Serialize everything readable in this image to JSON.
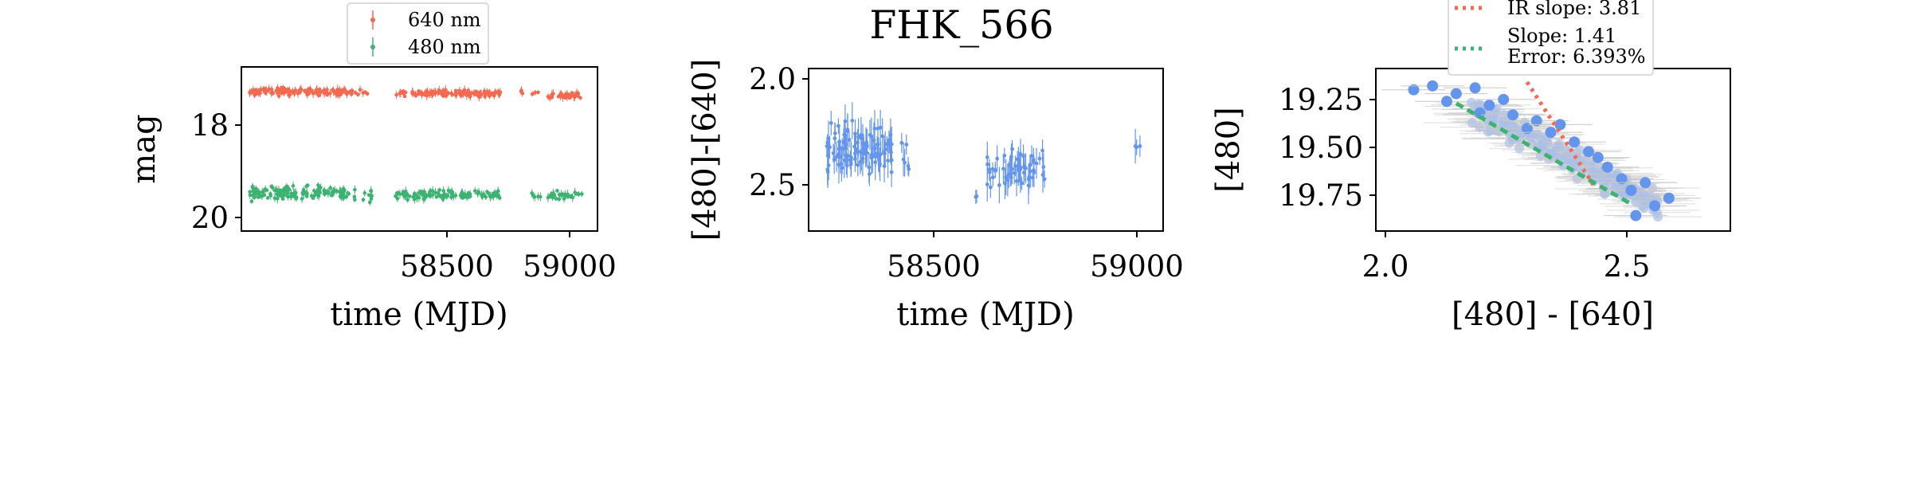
{
  "figure": {
    "title": "FHK_566"
  },
  "colors": {
    "red": "#f4694f",
    "green": "#3cb371",
    "blue": "#6495ed",
    "errgray": "#c8c8c8"
  },
  "chart_data": [
    {
      "type": "scatter",
      "title": "",
      "xlabel": "time (MJD)",
      "ylabel": "mag",
      "xlim": [
        58190,
        59070
      ],
      "ylim": [
        20.45,
        16.6
      ],
      "y_inverted": true,
      "xticks": [
        58500,
        59000
      ],
      "xtick_labels": [
        "58500",
        "59000"
      ],
      "yticks": [
        18,
        20
      ],
      "ytick_labels": [
        "18",
        "20"
      ],
      "legend": {
        "placement": "top-center",
        "entries": [
          "640 nm",
          "480 nm"
        ]
      },
      "series": [
        {
          "name": "640 nm",
          "color": "red",
          "segments": [
            {
              "x_range": [
                58210,
                58450
              ],
              "y_center": 17.18,
              "y_spread": 0.12,
              "count": 130
            },
            {
              "x_range": [
                58450,
                58510
              ],
              "y_center": 17.2,
              "y_spread": 0.1,
              "count": 15
            },
            {
              "x_range": [
                58570,
                58830
              ],
              "y_center": 17.22,
              "y_spread": 0.1,
              "count": 120
            },
            {
              "x_range": [
                58880,
                58930
              ],
              "y_center": 17.2,
              "y_spread": 0.08,
              "count": 6
            },
            {
              "x_range": [
                58945,
                59035
              ],
              "y_center": 17.28,
              "y_spread": 0.1,
              "count": 30
            }
          ]
        },
        {
          "name": "480 nm",
          "color": "green",
          "segments": [
            {
              "x_range": [
                58210,
                58450
              ],
              "y_center": 19.55,
              "y_spread": 0.22,
              "count": 140
            },
            {
              "x_range": [
                58450,
                58520
              ],
              "y_center": 19.65,
              "y_spread": 0.28,
              "count": 14
            },
            {
              "x_range": [
                58570,
                58830
              ],
              "y_center": 19.6,
              "y_spread": 0.15,
              "count": 110
            },
            {
              "x_range": [
                58880,
                58930
              ],
              "y_center": 19.6,
              "y_spread": 0.12,
              "count": 5
            },
            {
              "x_range": [
                58945,
                59035
              ],
              "y_center": 19.62,
              "y_spread": 0.15,
              "count": 30
            }
          ]
        }
      ]
    },
    {
      "type": "scatter",
      "title": "FHK_566",
      "xlabel": "time (MJD)",
      "ylabel": "[480]-[640]",
      "xlim": [
        58190,
        59070
      ],
      "ylim": [
        2.72,
        1.95
      ],
      "y_inverted": true,
      "xticks": [
        58500,
        59000
      ],
      "xtick_labels": [
        "58500",
        "59000"
      ],
      "yticks": [
        2.0,
        2.5
      ],
      "ytick_labels": [
        "2.0",
        "2.5"
      ],
      "series": [
        {
          "name": "",
          "color": "blue",
          "error_bars": true,
          "segments": [
            {
              "x_range": [
                58230,
                58400
              ],
              "y_center": 2.33,
              "y_spread": 0.16,
              "count": 110
            },
            {
              "x_range": [
                58420,
                58440
              ],
              "y_center": 2.35,
              "y_spread": 0.18,
              "count": 6
            },
            {
              "x_range": [
                58600,
                58610
              ],
              "y_center": 2.56,
              "y_spread": 0.02,
              "count": 2
            },
            {
              "x_range": [
                58630,
                58780
              ],
              "y_center": 2.42,
              "y_spread": 0.12,
              "count": 60
            },
            {
              "x_range": [
                58995,
                59020
              ],
              "y_center": 2.32,
              "y_spread": 0.04,
              "count": 3
            }
          ]
        }
      ]
    },
    {
      "type": "scatter",
      "title": "",
      "xlabel": "[480] - [640]",
      "ylabel": "[480]",
      "xlim": [
        1.98,
        2.73
      ],
      "ylim": [
        19.93,
        19.09
      ],
      "y_inverted": true,
      "xticks": [
        2.0,
        2.5
      ],
      "xtick_labels": [
        "2.0",
        "2.5"
      ],
      "yticks": [
        19.25,
        19.5,
        19.75
      ],
      "ytick_labels": [
        "19.25",
        "19.50",
        "19.75"
      ],
      "legend": {
        "placement": "top-left",
        "entries": [
          "IR slope: 3.81",
          "Slope: 1.41",
          "Error: 6.393%"
        ]
      },
      "series": [
        {
          "name": "",
          "color": "blue",
          "error_bars": true,
          "points": [
            [
              2.06,
              19.2
            ],
            [
              2.1,
              19.18
            ],
            [
              2.13,
              19.26
            ],
            [
              2.15,
              19.22
            ],
            [
              2.19,
              19.19
            ],
            [
              2.2,
              19.32
            ],
            [
              2.22,
              19.28
            ],
            [
              2.25,
              19.25
            ],
            [
              2.27,
              19.33
            ],
            [
              2.3,
              19.4
            ],
            [
              2.32,
              19.36
            ],
            [
              2.35,
              19.42
            ],
            [
              2.37,
              19.38
            ],
            [
              2.4,
              19.47
            ],
            [
              2.43,
              19.52
            ],
            [
              2.45,
              19.55
            ],
            [
              2.47,
              19.6
            ],
            [
              2.5,
              19.66
            ],
            [
              2.52,
              19.72
            ],
            [
              2.55,
              19.68
            ],
            [
              2.57,
              19.8
            ],
            [
              2.6,
              19.76
            ],
            [
              2.53,
              19.85
            ]
          ],
          "cloud": {
            "x_range": [
              2.18,
              2.58
            ],
            "y_center_at_xmin": 19.3,
            "y_center_at_xmax": 19.8,
            "y_spread": 0.1,
            "count": 180
          }
        },
        {
          "name": "IR slope: 3.81",
          "color": "red",
          "line": {
            "x": [
              2.3,
              2.44
            ],
            "y": [
              19.16,
              19.69
            ]
          }
        },
        {
          "name": "Slope: 1.41",
          "color": "green",
          "line": {
            "x": [
              2.15,
              2.52
            ],
            "y": [
              19.27,
              19.79
            ]
          }
        }
      ]
    }
  ]
}
